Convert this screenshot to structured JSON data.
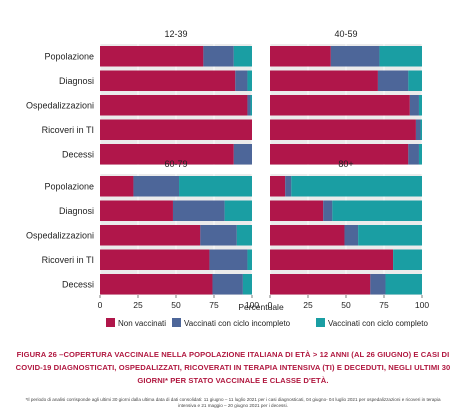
{
  "chart_data": {
    "type": "bar",
    "orientation": "horizontal-stacked-percent",
    "categories": [
      "Popolazione",
      "Diagnosi",
      "Ospedalizzazioni",
      "Ricoveri in TI",
      "Decessi"
    ],
    "xlabel": "Percentuale",
    "xlim": [
      0,
      100
    ],
    "xticks": [
      "0",
      "25",
      "50",
      "75",
      "100"
    ],
    "grid": true,
    "legend_position": "bottom",
    "series_meta": [
      {
        "name": "Non vaccinati",
        "color": "#b0164a"
      },
      {
        "name": "Vaccinati con ciclo incompleto",
        "color": "#4d6699"
      },
      {
        "name": "Vaccinati con ciclo completo",
        "color": "#1a9ea3"
      }
    ],
    "panels": [
      {
        "title": "12-39",
        "values": [
          [
            68,
            20,
            12
          ],
          [
            89,
            8,
            3
          ],
          [
            97,
            2,
            1
          ],
          [
            100,
            0,
            0
          ],
          [
            88,
            12,
            0
          ]
        ]
      },
      {
        "title": "40-59",
        "values": [
          [
            40,
            32,
            28
          ],
          [
            71,
            20,
            9
          ],
          [
            92,
            6,
            2
          ],
          [
            96,
            3,
            1
          ],
          [
            91,
            7,
            2
          ]
        ]
      },
      {
        "title": "60-79",
        "values": [
          [
            22,
            30,
            48
          ],
          [
            48,
            34,
            18
          ],
          [
            66,
            24,
            10
          ],
          [
            72,
            25,
            3
          ],
          [
            74,
            20,
            6
          ]
        ]
      },
      {
        "title": "80+",
        "values": [
          [
            10,
            4,
            86
          ],
          [
            35,
            6,
            59
          ],
          [
            49,
            9,
            42
          ],
          [
            81,
            0,
            19
          ],
          [
            66,
            10,
            24
          ]
        ]
      }
    ]
  },
  "caption": "Figura 26 –copertura vaccinale nella popolazione Italiana di età > 12 anni (al 26 giugno) e casi di COVID-19 diagnosticati, ospedalizzati, ricoverati in terapia intensiva (TI) e deceduti, negli ultimi 30 giorni* per stato vaccinale e classe d'età.",
  "footnote": "*Il periodo di analisi corrisponde agli ultimi 30 giorni dalla ultima data di dati consolidati: 11 giugno – 11 luglio 2021 per i casi diagnosticati, 04 giugno- 04 luglio 2021 per ospedalizzazioni e ricoveri in terapia intensiva e 21 maggio – 20 giugno 2021 per i decessi."
}
